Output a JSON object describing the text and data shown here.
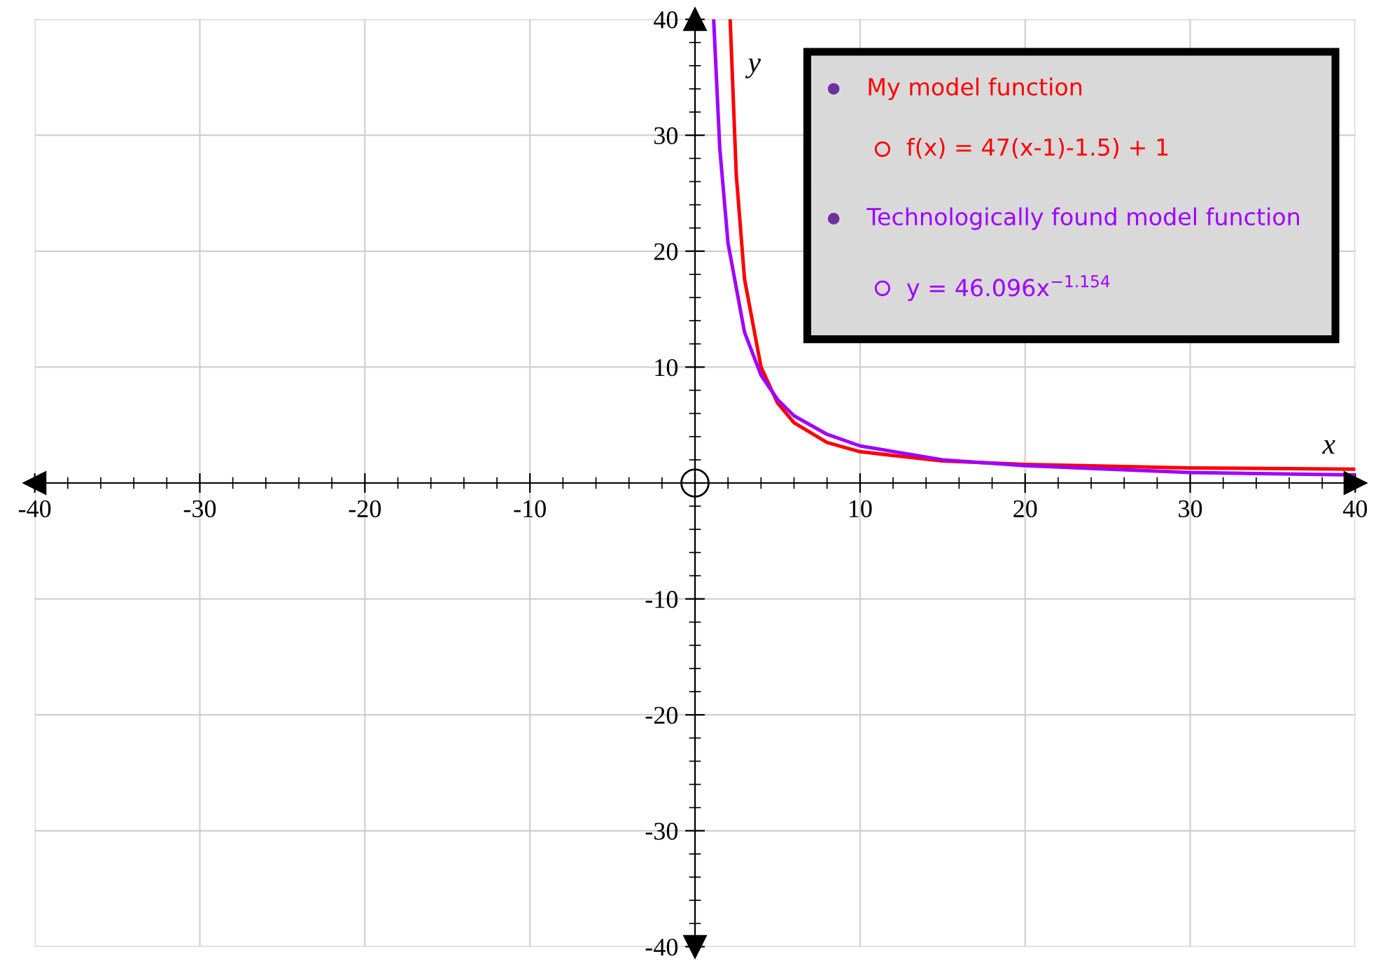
{
  "chart_data": {
    "type": "line",
    "xlabel": "x",
    "ylabel": "y",
    "xlim": [
      -40,
      40
    ],
    "ylim": [
      -40,
      40
    ],
    "xticks": [
      -40,
      -30,
      -20,
      -10,
      {
        "value": 0,
        "label": null
      },
      10,
      20,
      30,
      40
    ],
    "yticks": [
      -40,
      -30,
      -20,
      -10,
      {
        "value": 0,
        "label": null
      },
      10,
      20,
      30,
      40
    ],
    "grid": true,
    "line_style": "solid",
    "marker": "none",
    "series": [
      {
        "color": "#ff0000",
        "x": [
          2.13,
          2.5,
          3,
          4,
          5,
          6,
          8,
          10,
          15,
          20,
          30,
          40
        ],
        "values": [
          40,
          26.6,
          17.6,
          10.0,
          6.9,
          5.2,
          3.5,
          2.7,
          1.9,
          1.6,
          1.3,
          1.2
        ]
      },
      {
        "color": "#a000ff",
        "x": [
          1.13,
          1.5,
          2,
          3,
          4,
          5,
          6,
          8,
          10,
          15,
          20,
          30,
          40
        ],
        "values": [
          40,
          28.9,
          20.7,
          13.0,
          9.3,
          7.2,
          5.8,
          4.2,
          3.2,
          2.0,
          1.5,
          0.9,
          0.7
        ]
      }
    ],
    "annotations": [
      "My model function",
      "f(x) = 47(x-1)-1.5) + 1",
      "Technologically found model function",
      "y = 46.096x$^{−1.154}$"
    ]
  }
}
